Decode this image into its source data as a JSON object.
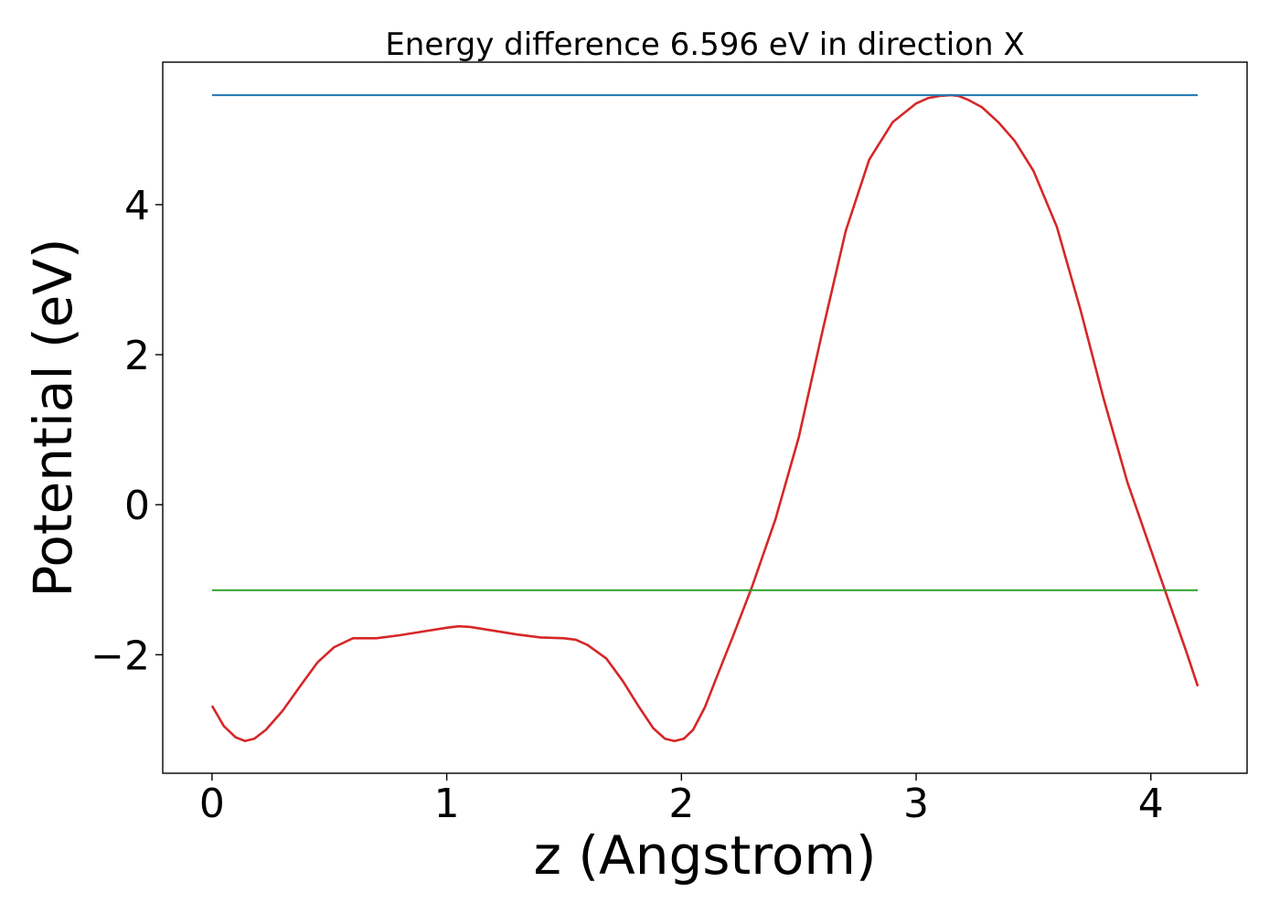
{
  "chart_data": {
    "type": "line",
    "title": "Energy difference 6.596 eV in direction X",
    "xlabel": "z (Angstrom)",
    "ylabel": "Potential (eV)",
    "xlim": [
      -0.21,
      4.41
    ],
    "ylim": [
      -3.58,
      5.9
    ],
    "xticks": [
      0,
      1,
      2,
      3,
      4
    ],
    "yticks": [
      -2,
      0,
      2,
      4
    ],
    "xtick_labels": [
      "0",
      "1",
      "2",
      "3",
      "4"
    ],
    "ytick_labels": [
      "−2",
      "0",
      "2",
      "4"
    ],
    "grid": false,
    "series": [
      {
        "color": "#d62728",
        "x": [
          0.0,
          0.05,
          0.1,
          0.14,
          0.18,
          0.23,
          0.3,
          0.38,
          0.45,
          0.52,
          0.6,
          0.7,
          0.8,
          0.9,
          1.0,
          1.05,
          1.1,
          1.2,
          1.3,
          1.4,
          1.5,
          1.55,
          1.6,
          1.68,
          1.75,
          1.82,
          1.88,
          1.93,
          1.97,
          2.01,
          2.05,
          2.1,
          2.15,
          2.22,
          2.3,
          2.4,
          2.5,
          2.6,
          2.7,
          2.8,
          2.9,
          3.0,
          3.05,
          3.1,
          3.15,
          3.18,
          3.22,
          3.28,
          3.35,
          3.42,
          3.5,
          3.6,
          3.7,
          3.8,
          3.9,
          4.0,
          4.05,
          4.1,
          4.15,
          4.2
        ],
        "y": [
          -2.68,
          -2.95,
          -3.1,
          -3.15,
          -3.12,
          -3.0,
          -2.75,
          -2.4,
          -2.1,
          -1.9,
          -1.78,
          -1.78,
          -1.74,
          -1.69,
          -1.64,
          -1.62,
          -1.63,
          -1.68,
          -1.73,
          -1.77,
          -1.78,
          -1.8,
          -1.87,
          -2.05,
          -2.35,
          -2.7,
          -2.98,
          -3.12,
          -3.15,
          -3.12,
          -3.0,
          -2.7,
          -2.3,
          -1.75,
          -1.1,
          -0.2,
          0.9,
          2.3,
          3.65,
          4.6,
          5.1,
          5.35,
          5.42,
          5.45,
          5.46,
          5.45,
          5.4,
          5.3,
          5.1,
          4.85,
          4.45,
          3.7,
          2.6,
          1.4,
          0.3,
          -0.6,
          -1.05,
          -1.5,
          -1.95,
          -2.42
        ]
      },
      {
        "color": "#1f77b4",
        "x": [
          0.0,
          4.2
        ],
        "y": [
          5.46,
          5.46
        ]
      },
      {
        "color": "#2ca02c",
        "x": [
          0.0,
          4.2
        ],
        "y": [
          -1.14,
          -1.14
        ]
      }
    ]
  }
}
